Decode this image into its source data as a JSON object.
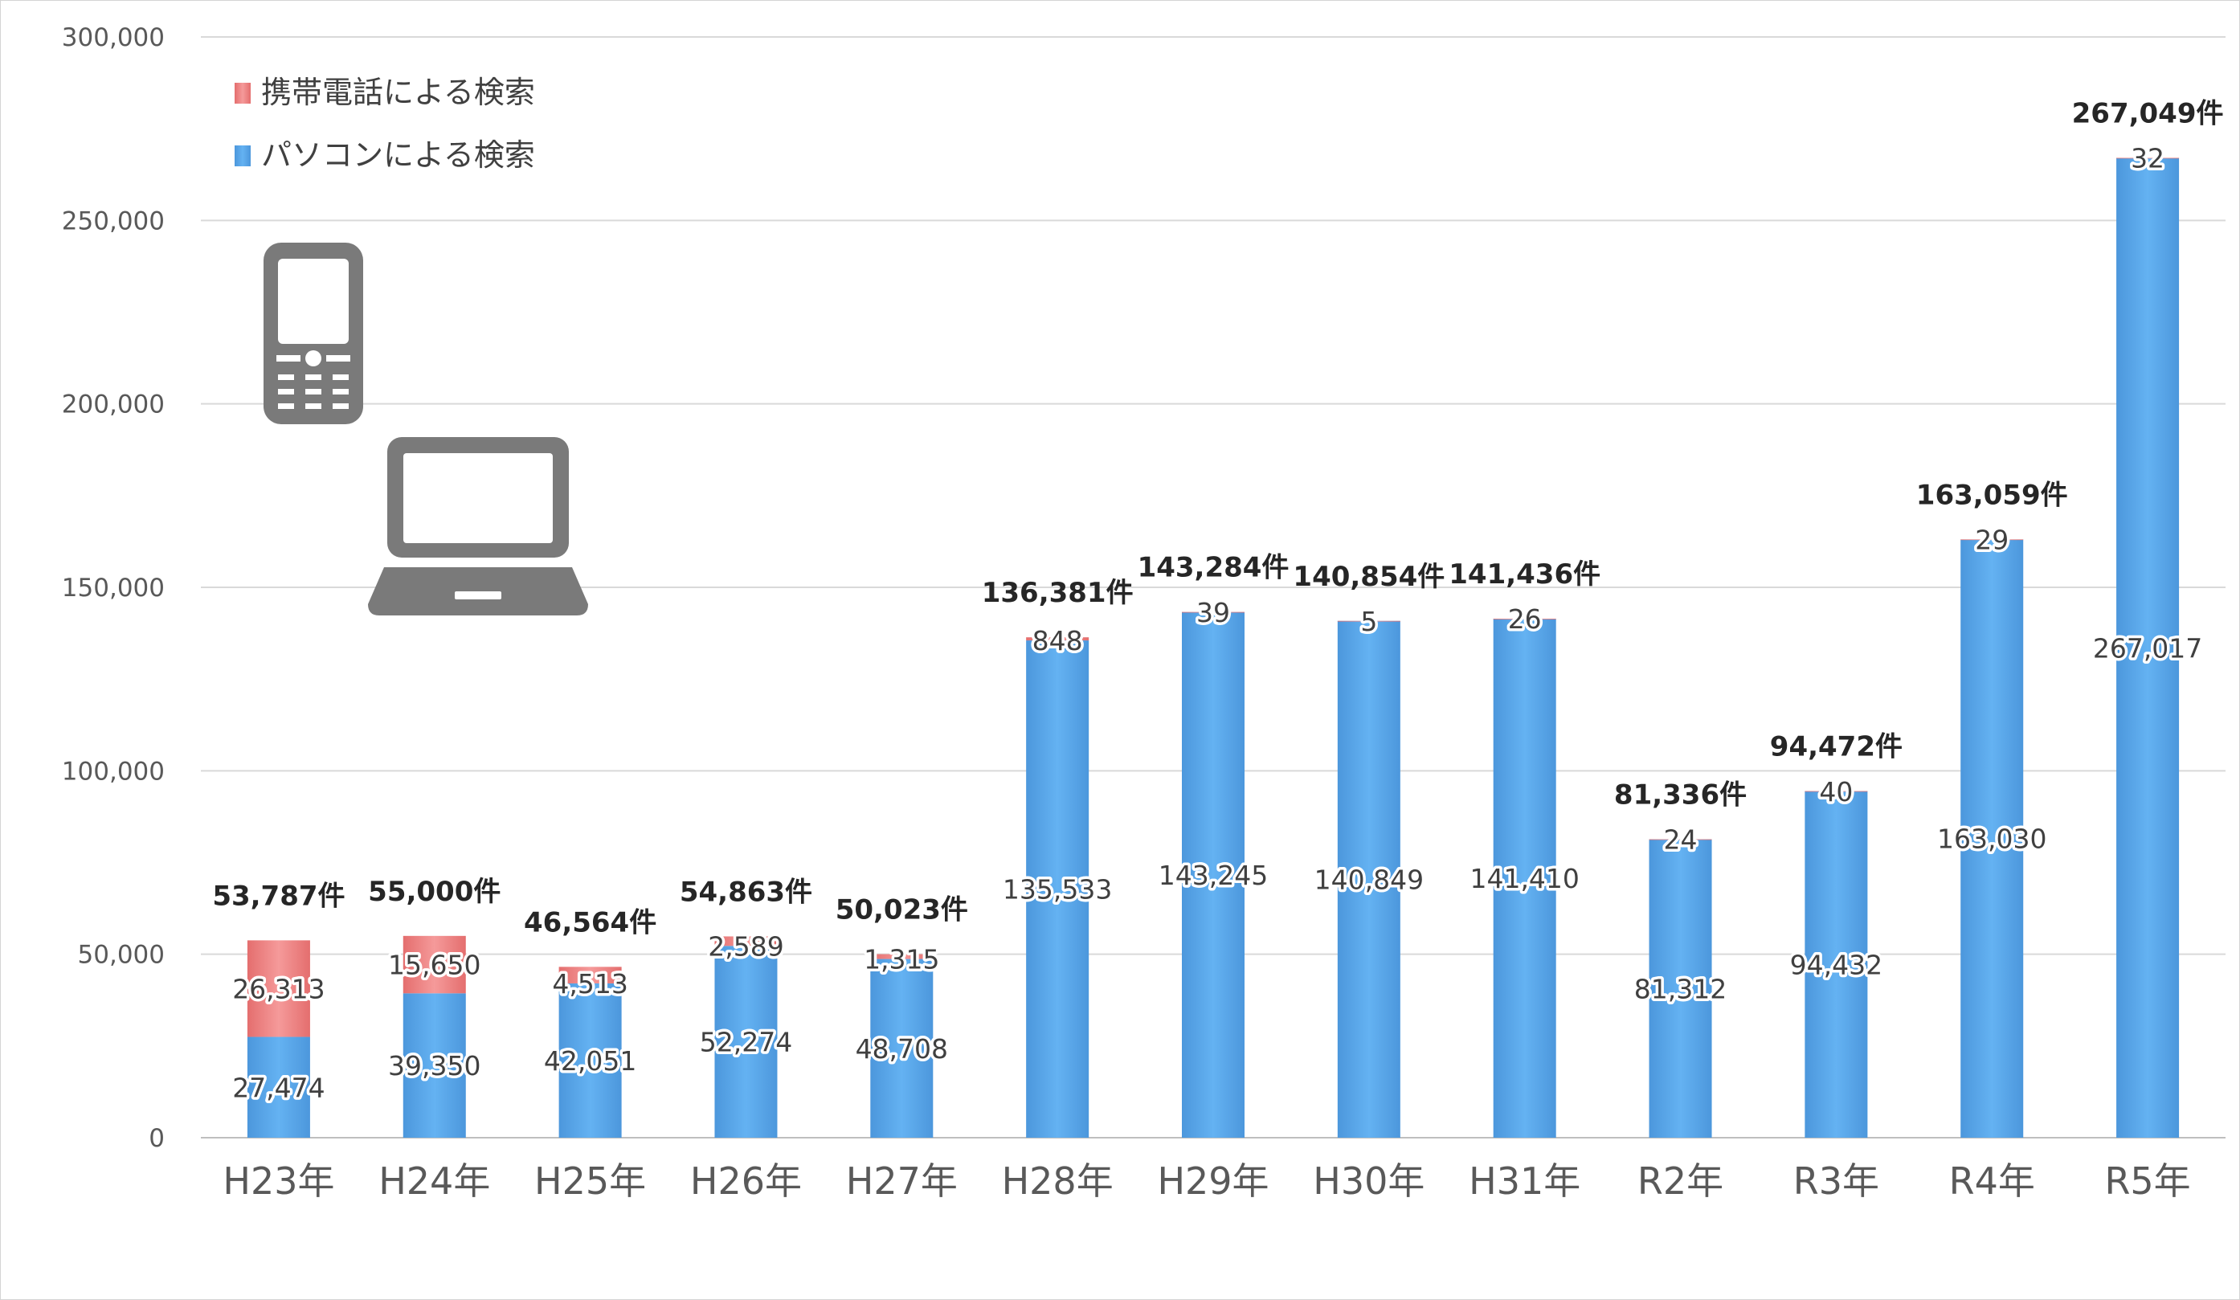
{
  "chart_data": {
    "type": "bar",
    "stacked": true,
    "categories": [
      "H23年",
      "H24年",
      "H25年",
      "H26年",
      "H27年",
      "H28年",
      "H29年",
      "H30年",
      "H31年",
      "R2年",
      "R3年",
      "R4年",
      "R5年"
    ],
    "series": [
      {
        "name": "パソコンによる検索",
        "color": "#5aa9ec",
        "values": [
          27474,
          39350,
          42051,
          52274,
          48708,
          135533,
          143245,
          140849,
          141410,
          81312,
          94432,
          163030,
          267017
        ],
        "labels": [
          "27,474",
          "39,350",
          "42,051",
          "52,274",
          "48,708",
          "135,533",
          "143,245",
          "140,849",
          "141,410",
          "81,312",
          "94,432",
          "163,030",
          "267,017"
        ]
      },
      {
        "name": "携帯電話による検索",
        "color": "#ec7d7d",
        "values": [
          26313,
          15650,
          4513,
          2589,
          1315,
          848,
          39,
          5,
          26,
          24,
          40,
          29,
          32
        ],
        "labels": [
          "26,313",
          "15,650",
          "4,513",
          "2,589",
          "1,315",
          "848",
          "39",
          "5",
          "26",
          "24",
          "40",
          "29",
          "32"
        ]
      }
    ],
    "totals": [
      "53,787件",
      "55,000件",
      "46,564件",
      "54,863件",
      "50,023件",
      "136,381件",
      "143,284件",
      "140,854件",
      "141,436件",
      "81,336件",
      "94,472件",
      "163,059件",
      "267,049件"
    ],
    "y_ticks": [
      "0",
      "50,000",
      "100,000",
      "150,000",
      "200,000",
      "250,000",
      "300,000"
    ],
    "ylim": [
      0,
      300000
    ],
    "grid": true,
    "legend_position": "top-left",
    "title": "",
    "xlabel": "",
    "ylabel": ""
  },
  "icons": [
    "mobile-phone-icon",
    "laptop-icon"
  ]
}
